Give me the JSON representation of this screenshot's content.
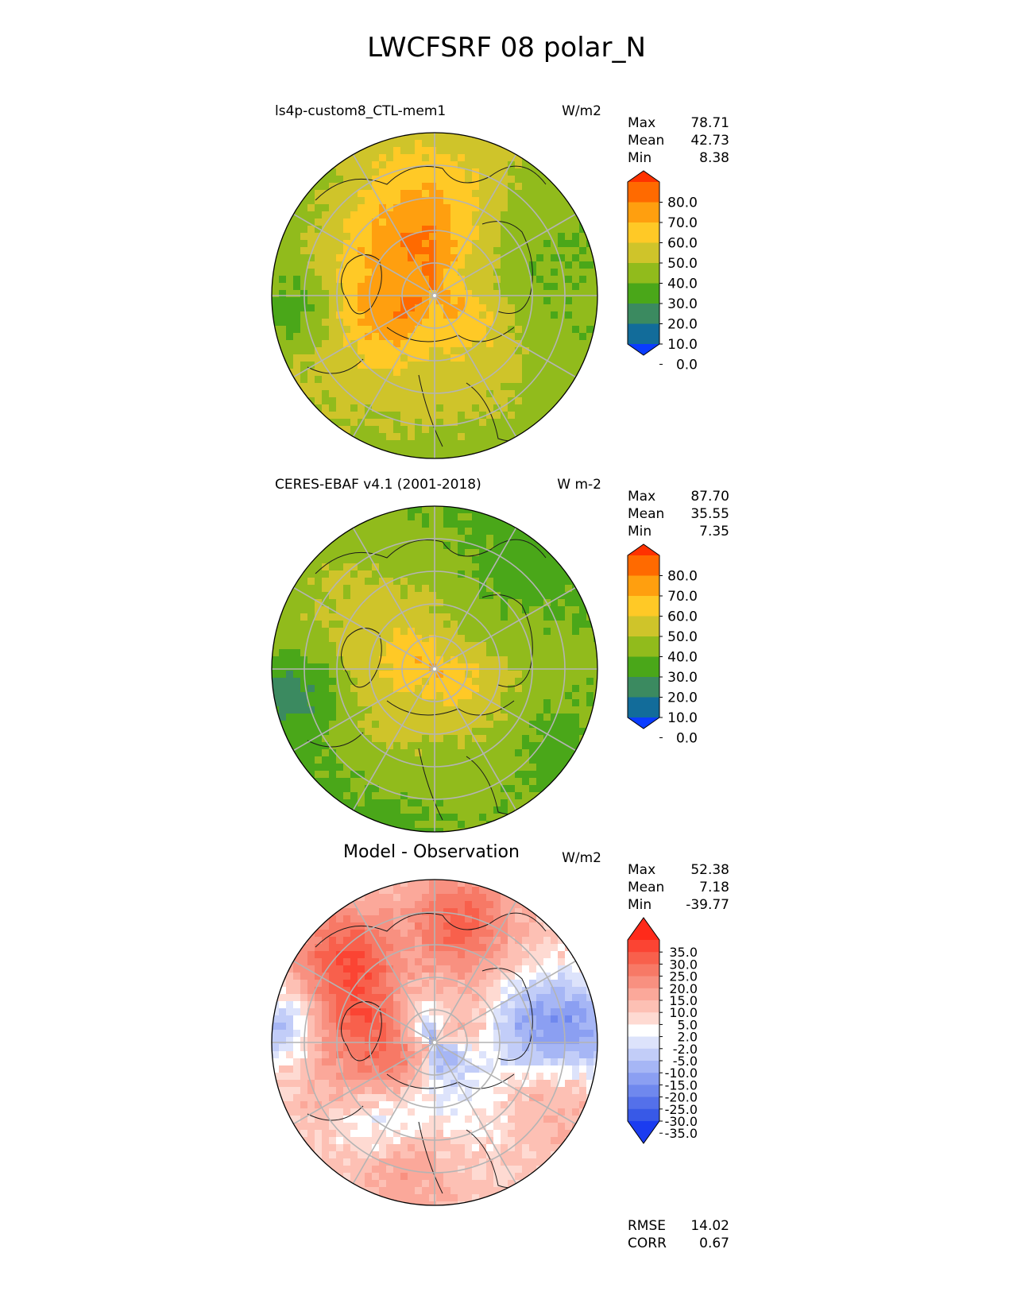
{
  "title": "LWCFSRF 08 polar_N",
  "panels": [
    {
      "id": "model",
      "title": "ls4p-custom8_CTL-mem1",
      "units": "W/m2",
      "stats": [
        {
          "label": "Max",
          "value": "78.71"
        },
        {
          "label": "Mean",
          "value": "42.73"
        },
        {
          "label": "Min",
          "value": "8.38"
        }
      ]
    },
    {
      "id": "obs",
      "title": "CERES-EBAF v4.1 (2001-2018)",
      "units": "W m-2",
      "stats": [
        {
          "label": "Max",
          "value": "87.70"
        },
        {
          "label": "Mean",
          "value": "35.55"
        },
        {
          "label": "Min",
          "value": "7.35"
        }
      ]
    },
    {
      "id": "diff",
      "title": "Model - Observation",
      "units": "W/m2",
      "stats": [
        {
          "label": "Max",
          "value": "52.38"
        },
        {
          "label": "Mean",
          "value": "7.18"
        },
        {
          "label": "Min",
          "value": "-39.77"
        }
      ],
      "extra_stats": [
        {
          "label": "RMSE",
          "value": "14.02"
        },
        {
          "label": "CORR",
          "value": "0.67"
        }
      ]
    }
  ],
  "chart_data": [
    {
      "type": "heatmap",
      "projection": "north polar stereographic",
      "title": "ls4p-custom8_CTL-mem1",
      "units": "W/m2",
      "colorbar": {
        "ticks": [
          80.0,
          70.0,
          60.0,
          50.0,
          40.0,
          30.0,
          20.0,
          10.0,
          0.0
        ],
        "tick_labels": [
          "80.0",
          "70.0",
          "60.0",
          "50.0",
          "40.0",
          "30.0",
          "20.0",
          "10.0",
          "0.0"
        ],
        "colors_top_to_bottom": [
          "#ff3200",
          "#ff6a00",
          "#ff9f0f",
          "#ffc926",
          "#cfc42a",
          "#91bb1c",
          "#4aa719",
          "#3b8a60",
          "#126c9a",
          "#0a3cff"
        ],
        "extend": "both"
      },
      "stats": {
        "max": 78.71,
        "mean": 42.73,
        "min": 8.38
      }
    },
    {
      "type": "heatmap",
      "projection": "north polar stereographic",
      "title": "CERES-EBAF v4.1 (2001-2018)",
      "units": "W m-2",
      "colorbar": {
        "ticks": [
          80.0,
          70.0,
          60.0,
          50.0,
          40.0,
          30.0,
          20.0,
          10.0,
          0.0
        ],
        "tick_labels": [
          "80.0",
          "70.0",
          "60.0",
          "50.0",
          "40.0",
          "30.0",
          "20.0",
          "10.0",
          "0.0"
        ],
        "colors_top_to_bottom": [
          "#ff3200",
          "#ff6a00",
          "#ff9f0f",
          "#ffc926",
          "#cfc42a",
          "#91bb1c",
          "#4aa719",
          "#3b8a60",
          "#126c9a",
          "#0a3cff"
        ],
        "extend": "both"
      },
      "stats": {
        "max": 87.7,
        "mean": 35.55,
        "min": 7.35
      }
    },
    {
      "type": "heatmap",
      "projection": "north polar stereographic",
      "title": "Model - Observation",
      "units": "W/m2",
      "colorbar": {
        "ticks": [
          35,
          30,
          25,
          20,
          15,
          10,
          5,
          2,
          -2,
          -5,
          -10,
          -15,
          -20,
          -25,
          -30,
          -35
        ],
        "tick_labels": [
          "35.0",
          "30.0",
          "25.0",
          "20.0",
          "15.0",
          "10.0",
          "5.0",
          "2.0",
          "-2.0",
          "-5.0",
          "-10.0",
          "-15.0",
          "-20.0",
          "-25.0",
          "-30.0",
          "-35.0"
        ],
        "colors_top_to_bottom": [
          "#ff2a1a",
          "#fb4433",
          "#f8604c",
          "#f77966",
          "#f89080",
          "#fba89a",
          "#fdc0b4",
          "#fedad2",
          "#ffffff",
          "#dde3fb",
          "#c2cdf8",
          "#a6b6f5",
          "#8b9ff2",
          "#6f88ee",
          "#5470ea",
          "#3859e7",
          "#1b3cf0"
        ],
        "extend": "both"
      },
      "stats": {
        "max": 52.38,
        "mean": 7.18,
        "min": -39.77
      },
      "rmse": 14.02,
      "corr": 0.67
    }
  ]
}
